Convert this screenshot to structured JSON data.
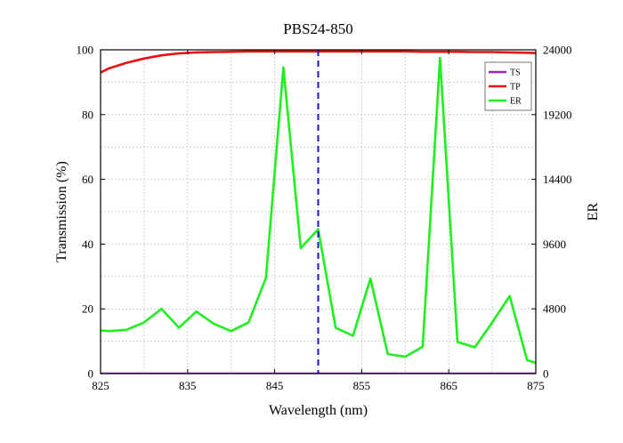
{
  "chart_data": {
    "type": "line",
    "title": "PBS24-850",
    "xlabel": "Wavelength (nm)",
    "ylabel": "Transmission (%)",
    "y2label": "ER",
    "xlim": [
      825,
      875
    ],
    "ylim": [
      0,
      100
    ],
    "y2lim": [
      0,
      24000
    ],
    "xticks": [
      825,
      835,
      845,
      855,
      865,
      875
    ],
    "yticks": [
      0,
      20,
      40,
      60,
      80,
      100
    ],
    "y2ticks": [
      0,
      4800,
      9600,
      14400,
      19200,
      24000
    ],
    "grid": true,
    "legend_position": "top-right",
    "vline": {
      "x": 850,
      "color": "#1a1ab4",
      "style": "dashed"
    },
    "series": [
      {
        "name": "TS",
        "axis": "left",
        "color": "#9a1ed0",
        "x": [
          825,
          875
        ],
        "y": [
          0.1,
          0.1
        ]
      },
      {
        "name": "TP",
        "axis": "left",
        "color": "#e81010",
        "x": [
          825,
          826,
          828,
          830,
          832,
          834,
          836,
          838,
          840,
          842,
          844,
          846,
          848,
          850,
          852,
          854,
          856,
          858,
          860,
          862,
          864,
          866,
          868,
          870,
          872,
          874,
          875
        ],
        "y": [
          93.0,
          94.3,
          96.0,
          97.3,
          98.3,
          98.9,
          99.2,
          99.3,
          99.4,
          99.5,
          99.5,
          99.5,
          99.5,
          99.5,
          99.5,
          99.5,
          99.5,
          99.5,
          99.5,
          99.4,
          99.4,
          99.4,
          99.3,
          99.3,
          99.2,
          99.1,
          99.0
        ]
      },
      {
        "name": "ER",
        "axis": "right",
        "color": "#1ef01e",
        "x": [
          825,
          826,
          828,
          830,
          832,
          834,
          836,
          838,
          840,
          842,
          844,
          846,
          848,
          850,
          852,
          854,
          856,
          858,
          860,
          862,
          864,
          866,
          868,
          870,
          872,
          874,
          875
        ],
        "y": [
          3200,
          3150,
          3250,
          3800,
          4800,
          3400,
          4600,
          3700,
          3150,
          3800,
          7100,
          22700,
          9300,
          10700,
          3400,
          2800,
          7050,
          1450,
          1250,
          2000,
          23400,
          2350,
          1950,
          3800,
          5750,
          1000,
          800
        ]
      }
    ]
  }
}
